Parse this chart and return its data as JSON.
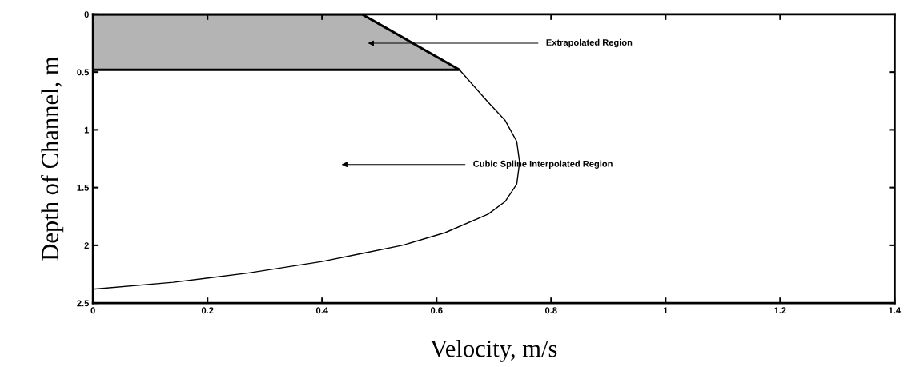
{
  "chart_data": {
    "type": "line",
    "xlabel": "Velocity, m/s",
    "ylabel": "Depth of Channel, m",
    "xlim": [
      0,
      1.4
    ],
    "xticks": [
      0,
      0.2,
      0.4,
      0.6,
      0.8,
      1,
      1.2,
      1.4
    ],
    "ylim": [
      2.5,
      0
    ],
    "yticks": [
      0,
      0.5,
      1,
      1.5,
      2,
      2.5
    ],
    "grid": false,
    "legend": false,
    "marker": "none",
    "line_style": "solid",
    "series": [
      {
        "type": "area",
        "color": "#b4b4b4",
        "x": [
          0,
          0.47,
          0.64,
          0
        ],
        "values": [
          0,
          0,
          0.48,
          0.48
        ]
      },
      {
        "color": "#000000",
        "x": [
          0.64,
          0.69,
          0.72,
          0.74,
          0.745,
          0.74,
          0.72,
          0.69,
          0.615,
          0.54,
          0.47,
          0.4,
          0.27,
          0.14,
          0.0
        ],
        "values": [
          0.48,
          0.76,
          0.92,
          1.1,
          1.28,
          1.47,
          1.62,
          1.73,
          1.89,
          2.0,
          2.07,
          2.14,
          2.24,
          2.32,
          2.38
        ]
      }
    ],
    "annotations": [
      "Extrapolated Region",
      "Cubic Spline Interpolated Region"
    ]
  }
}
